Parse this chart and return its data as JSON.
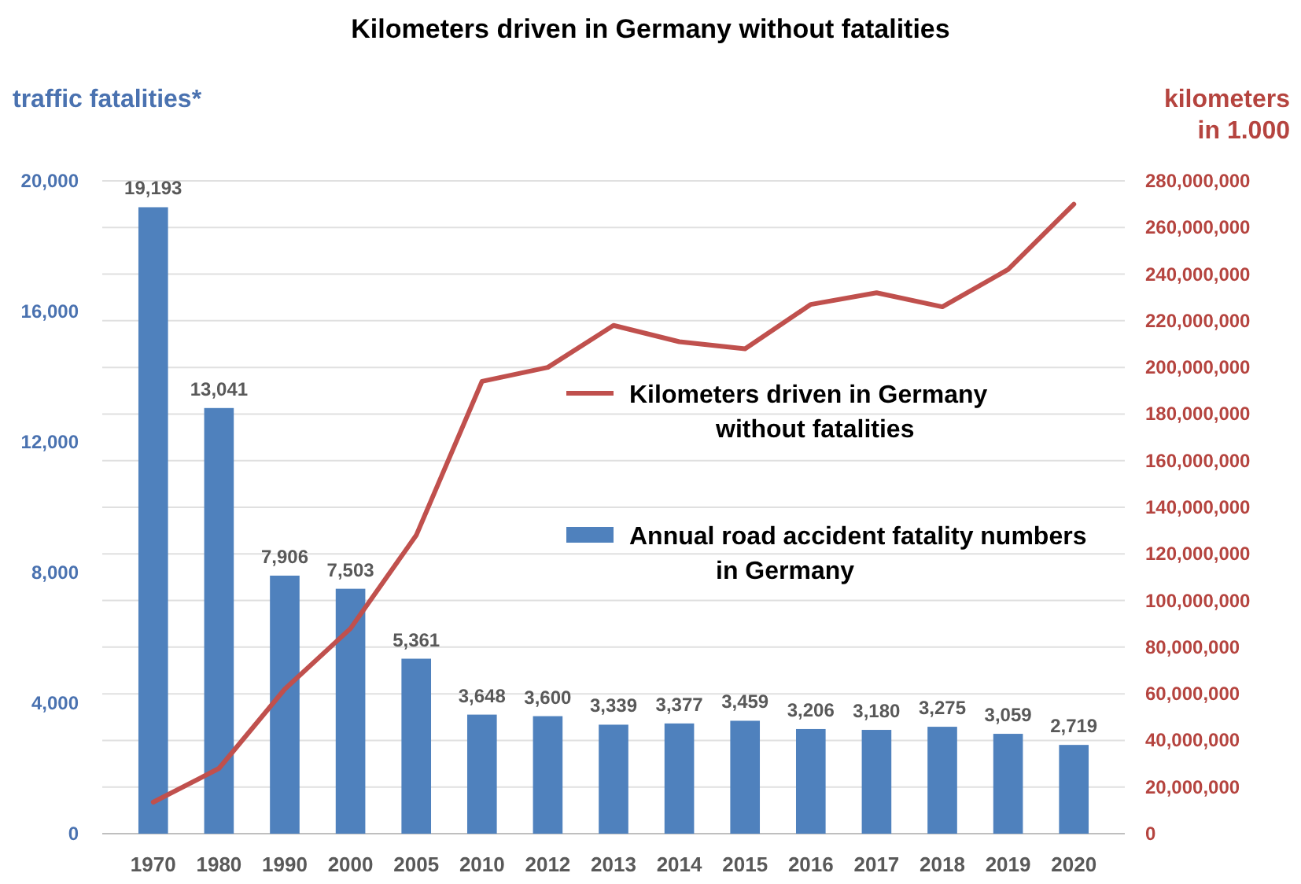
{
  "chart_data": {
    "type": "bar",
    "title": "Kilometers driven in Germany without fatalities",
    "ylabel": "traffic fatalities*",
    "y2label": "kilometers\nin 1.000",
    "categories": [
      "1970",
      "1980",
      "1990",
      "2000",
      "2005",
      "2010",
      "2012",
      "2013",
      "2014",
      "2015",
      "2016",
      "2017",
      "2018",
      "2019",
      "2020"
    ],
    "series": [
      {
        "name": "Kilometers driven in Germany without fatalities",
        "type": "line",
        "axis": "y2",
        "color": "#c0504d",
        "values": [
          13500000,
          28000000,
          62000000,
          88000000,
          128000000,
          194000000,
          200000000,
          218000000,
          211000000,
          208000000,
          227000000,
          232000000,
          226000000,
          242000000,
          270000000
        ]
      },
      {
        "name": "Annual road accident fatality numbers in Germany",
        "color": "#4f81bd",
        "values": [
          19193,
          13041,
          7906,
          7503,
          5361,
          3648,
          3600,
          3339,
          3377,
          3459,
          3206,
          3180,
          3275,
          3059,
          2719
        ],
        "value_labels": [
          "19,193",
          "13,041",
          "7,906",
          "7,503",
          "5,361",
          "3,648",
          "3,600",
          "3,339",
          "3,377",
          "3,459",
          "3,206",
          "3,180",
          "3,275",
          "3,059",
          "2,719"
        ]
      }
    ],
    "ylim": [
      0,
      20000
    ],
    "yticks": [
      0,
      {
        "value": 4000,
        "label": "4,000"
      },
      {
        "value": 8000,
        "label": "8,000"
      },
      {
        "value": 12000,
        "label": "12,000"
      },
      {
        "value": 16000,
        "label": "16,000"
      },
      {
        "value": 20000,
        "label": "20,000"
      }
    ],
    "y2lim": [
      0,
      280000000
    ],
    "y2ticks": [
      0,
      {
        "value": 20000000,
        "label": "20,000,000"
      },
      {
        "value": 40000000,
        "label": "40,000,000"
      },
      {
        "value": 60000000,
        "label": "60,000,000"
      },
      {
        "value": 80000000,
        "label": "80,000,000"
      },
      {
        "value": 100000000,
        "label": "100,000,000"
      },
      {
        "value": 120000000,
        "label": "120,000,000"
      },
      {
        "value": 140000000,
        "label": "140,000,000"
      },
      {
        "value": 160000000,
        "label": "160,000,000"
      },
      {
        "value": 180000000,
        "label": "180,000,000"
      },
      {
        "value": 200000000,
        "label": "200,000,000"
      },
      {
        "value": 220000000,
        "label": "220,000,000"
      },
      {
        "value": 240000000,
        "label": "240,000,000"
      },
      {
        "value": 260000000,
        "label": "260,000,000"
      },
      {
        "value": 280000000,
        "label": "280,000,000"
      }
    ],
    "grid": "y2",
    "legend": "right"
  }
}
